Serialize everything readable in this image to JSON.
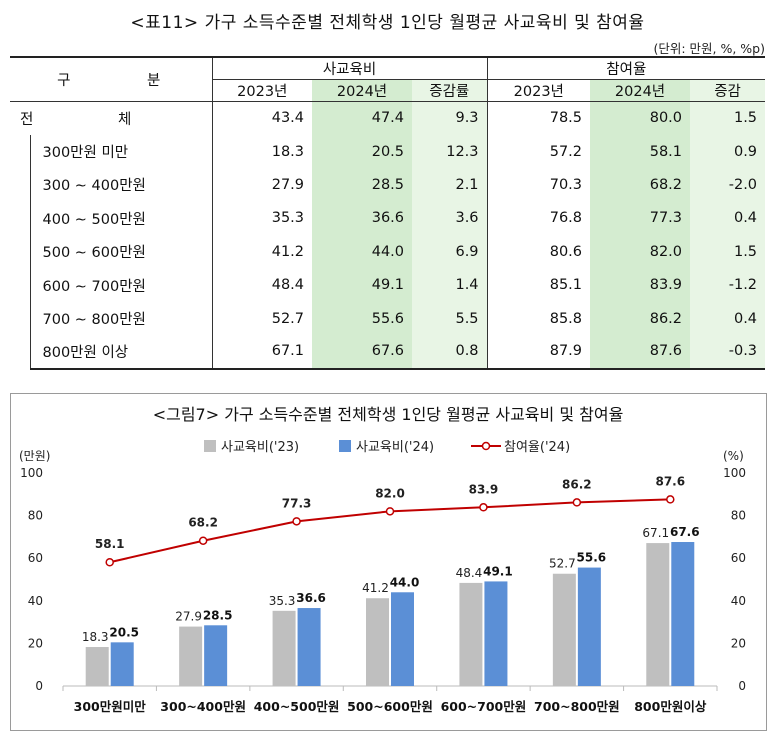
{
  "table": {
    "title": "<표11> 가구 소득수준별 전체학생 1인당 월평균 사교육비 및 참여율",
    "unit": "(단위: 만원, %, %p)",
    "header_category": "구 분",
    "group_cost": "사교육비",
    "group_part": "참여율",
    "col_2023": "2023년",
    "col_2024": "2024년",
    "col_change_rate": "증감률",
    "col_change": "증감",
    "total_label": "전 체",
    "total": {
      "c23": "43.4",
      "c24": "47.4",
      "cr": "9.3",
      "p23": "78.5",
      "p24": "80.0",
      "pc": "1.5"
    },
    "rows": [
      {
        "label": "300만원 미만",
        "c23": "18.3",
        "c24": "20.5",
        "cr": "12.3",
        "p23": "57.2",
        "p24": "58.1",
        "pc": "0.9"
      },
      {
        "label": "300 ∼ 400만원",
        "c23": "27.9",
        "c24": "28.5",
        "cr": "2.1",
        "p23": "70.3",
        "p24": "68.2",
        "pc": "-2.0"
      },
      {
        "label": "400 ∼ 500만원",
        "c23": "35.3",
        "c24": "36.6",
        "cr": "3.6",
        "p23": "76.8",
        "p24": "77.3",
        "pc": "0.4"
      },
      {
        "label": "500 ∼ 600만원",
        "c23": "41.2",
        "c24": "44.0",
        "cr": "6.9",
        "p23": "80.6",
        "p24": "82.0",
        "pc": "1.5"
      },
      {
        "label": "600 ∼ 700만원",
        "c23": "48.4",
        "c24": "49.1",
        "cr": "1.4",
        "p23": "85.1",
        "p24": "83.9",
        "pc": "-1.2"
      },
      {
        "label": "700 ∼ 800만원",
        "c23": "52.7",
        "c24": "55.6",
        "cr": "5.5",
        "p23": "85.8",
        "p24": "86.2",
        "pc": "0.4"
      },
      {
        "label": "800만원 이상",
        "c23": "67.1",
        "c24": "67.6",
        "cr": "0.8",
        "p23": "87.9",
        "p24": "87.6",
        "pc": "-0.3"
      }
    ]
  },
  "colors": {
    "bar23": "#bfbfbf",
    "bar24": "#5b8fd6",
    "line": "#c00000"
  },
  "chart_data": {
    "type": "bar",
    "title": "<그림7> 가구 소득수준별 전체학생 1인당 월평균 사교육비 및 참여율",
    "ylabel_left": "(만원)",
    "ylabel_right": "(%)",
    "ylim": [
      0,
      100
    ],
    "yticks": [
      0,
      20,
      40,
      60,
      80,
      100
    ],
    "categories": [
      "300만원미만",
      "300~400만원",
      "400~500만원",
      "500~600만원",
      "600~700만원",
      "700~800만원",
      "800만원이상"
    ],
    "series": [
      {
        "name": "사교육비('23)",
        "kind": "bar",
        "values": [
          18.3,
          27.9,
          35.3,
          41.2,
          48.4,
          52.7,
          67.1
        ]
      },
      {
        "name": "사교육비('24)",
        "kind": "bar",
        "values": [
          20.5,
          28.5,
          36.6,
          44.0,
          49.1,
          55.6,
          67.6
        ]
      },
      {
        "name": "참여율('24)",
        "kind": "line",
        "values": [
          58.1,
          68.2,
          77.3,
          82.0,
          83.9,
          86.2,
          87.6
        ]
      }
    ]
  }
}
